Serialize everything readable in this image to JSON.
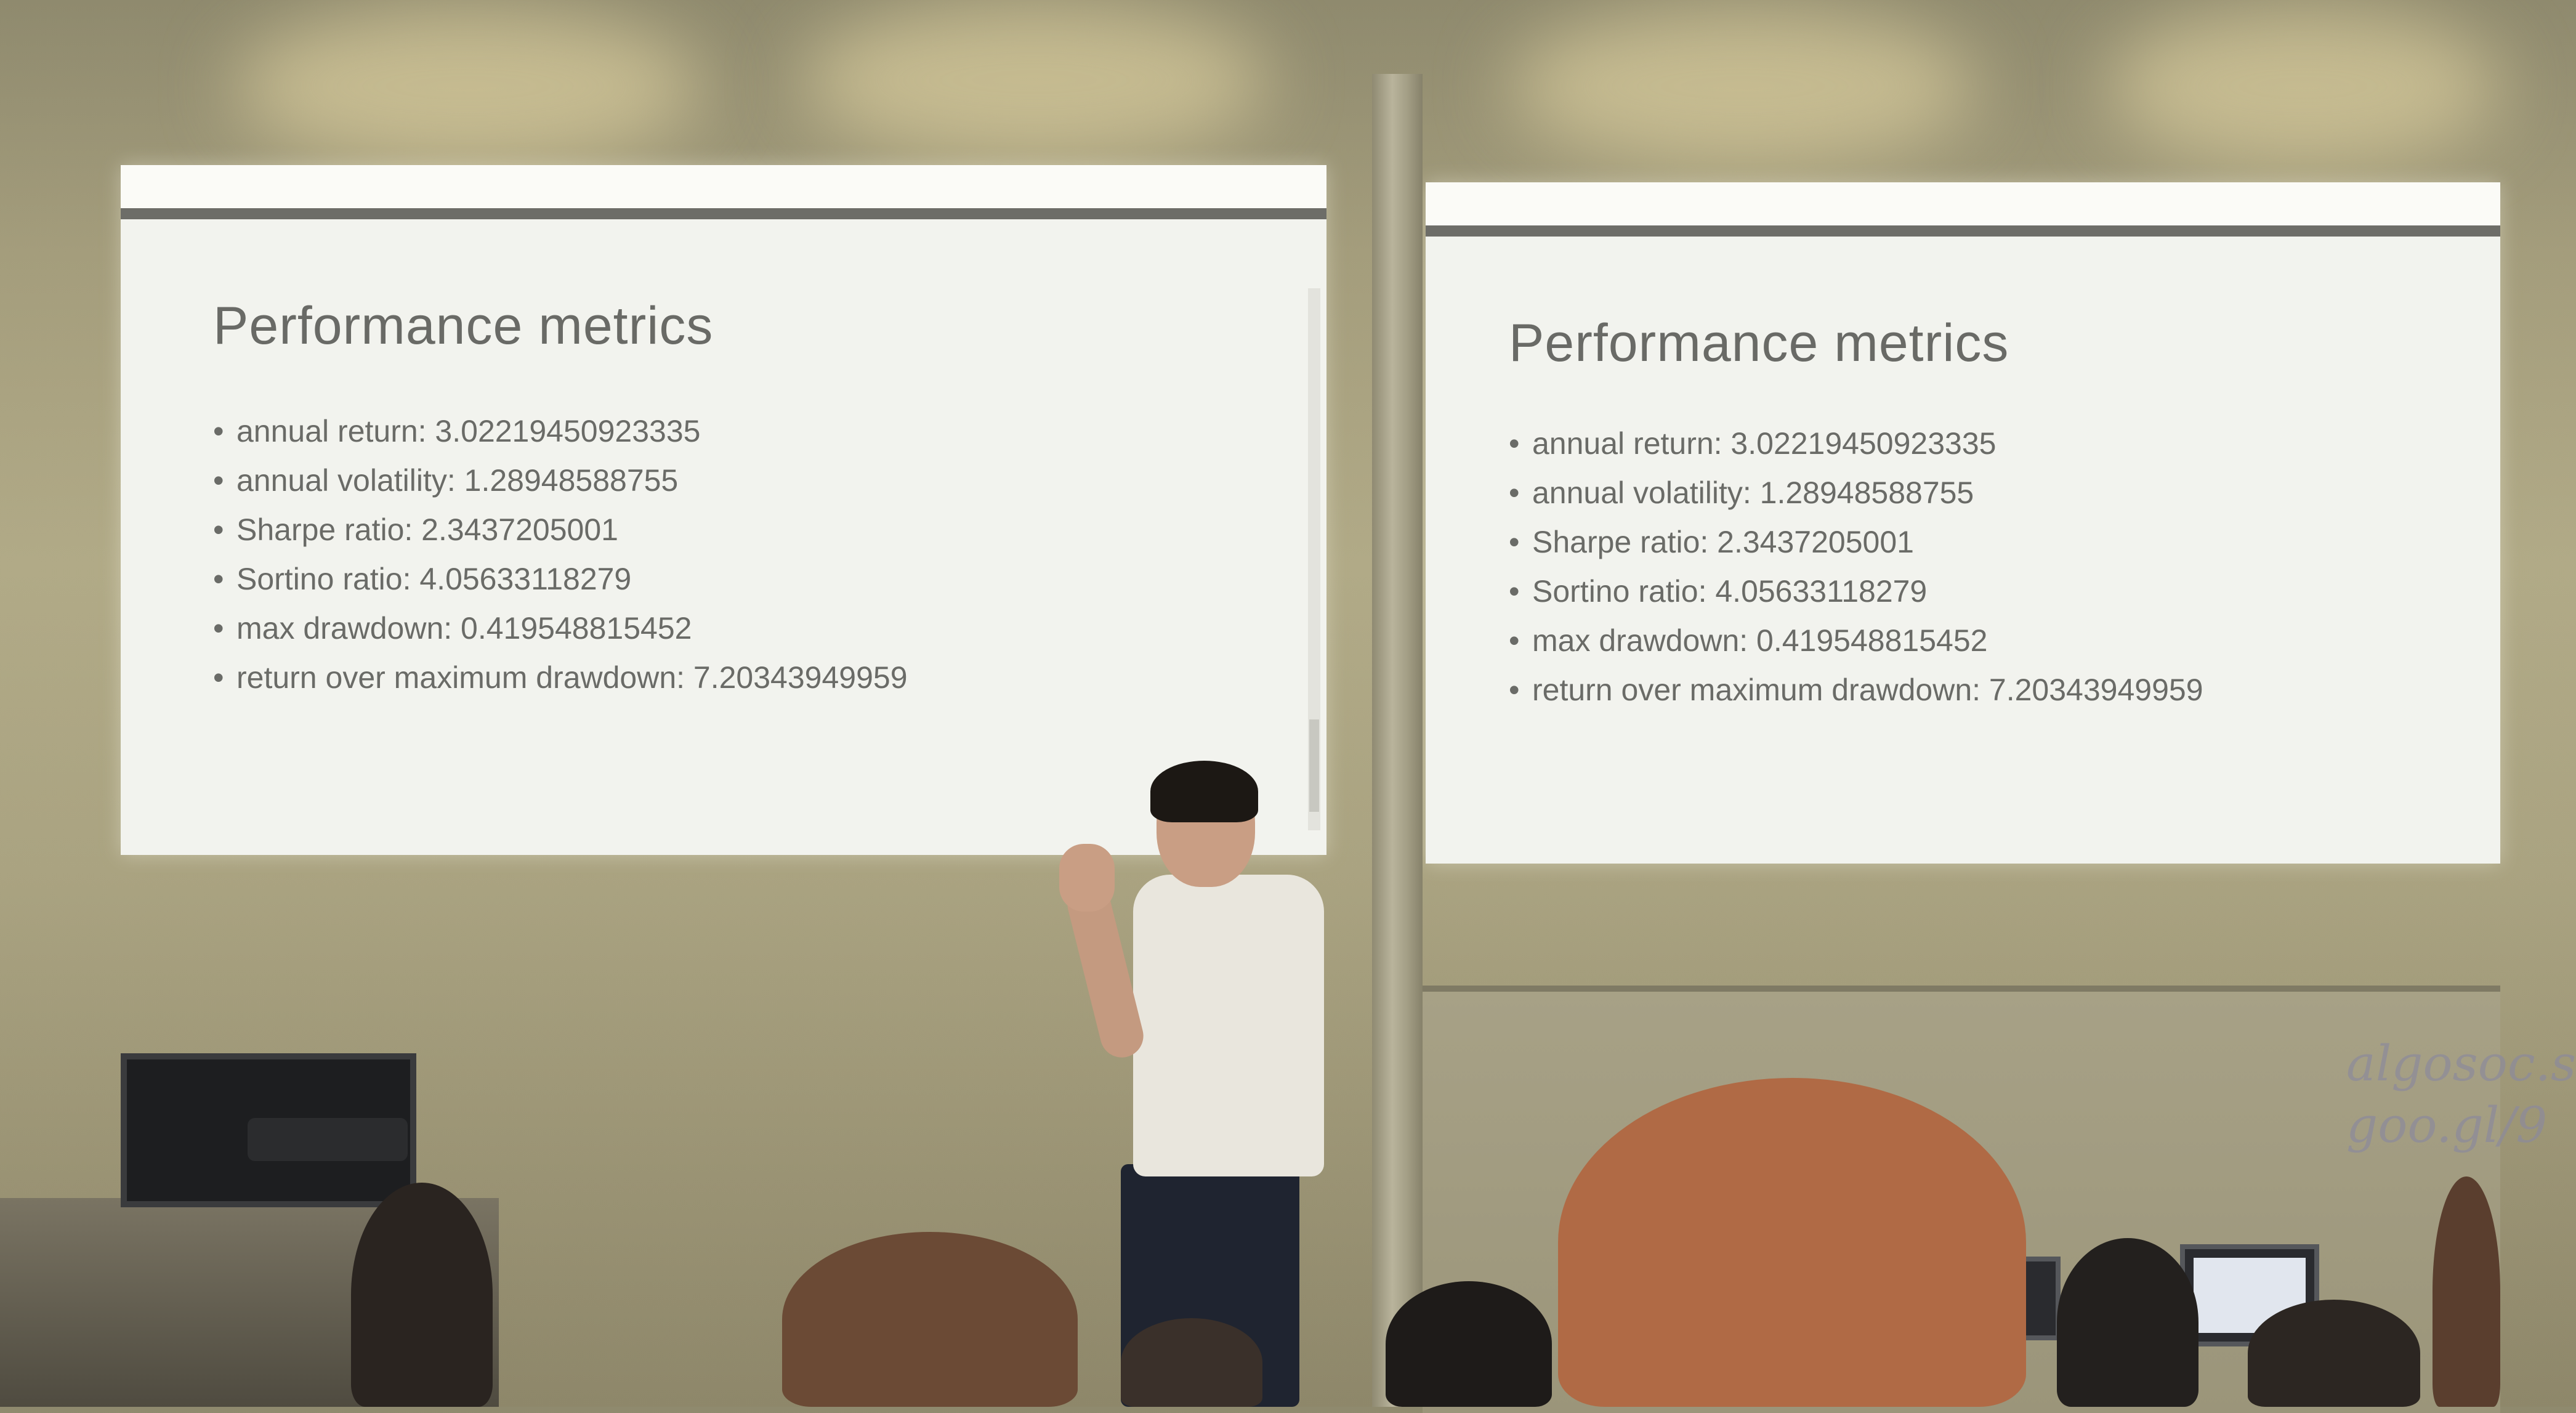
{
  "slides": [
    {
      "title": "Performance metrics",
      "bullets": [
        "annual return: 3.02219450923335",
        "annual volatility: 1.28948588755",
        "Sharpe ratio: 2.3437205001",
        "Sortino ratio: 4.05633118279",
        "max drawdown: 0.419548815452",
        "return over maximum drawdown: 7.20343949959"
      ]
    },
    {
      "title": "Performance metrics",
      "bullets": [
        "annual return: 3.02219450923335",
        "annual volatility: 1.28948588755",
        "Sharpe ratio: 2.3437205001",
        "Sortino ratio: 4.05633118279",
        "max drawdown: 0.419548815452",
        "return over maximum drawdown: 7.20343949959"
      ]
    }
  ],
  "whiteboard": {
    "line1": "algosoc.s",
    "line2": "goo.gl/9"
  },
  "colors": {
    "wall": "#aaa381",
    "screen": "#f2f3ee",
    "slide_text": "#6a6b67",
    "shirt": "#e9e6dd"
  }
}
